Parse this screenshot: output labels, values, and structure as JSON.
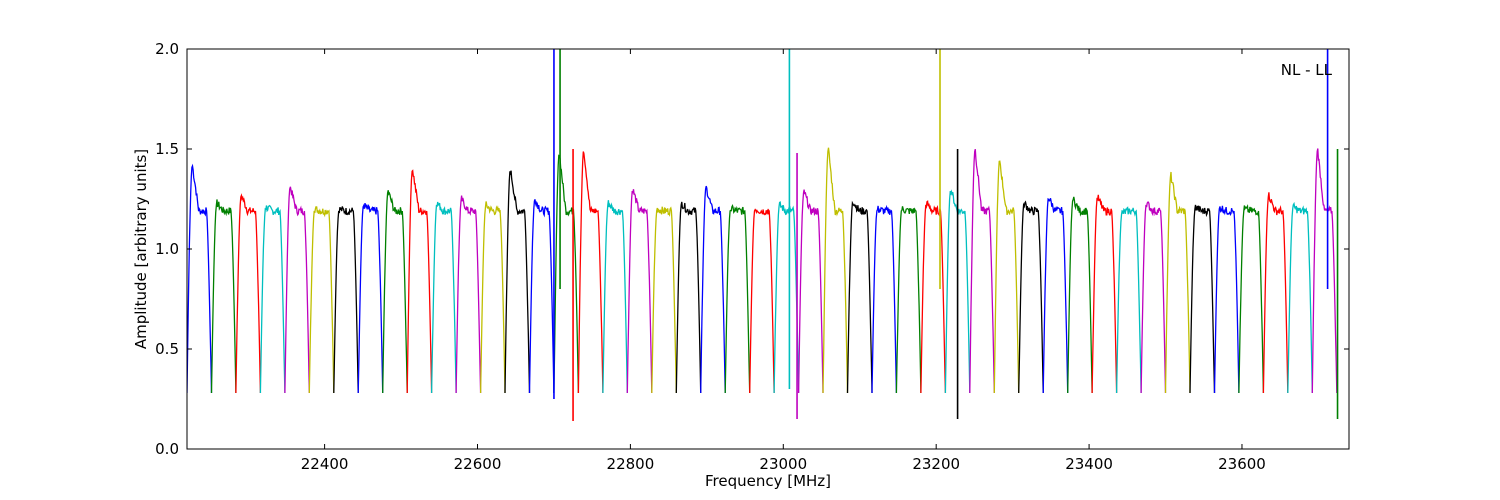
{
  "chart_data": {
    "type": "line",
    "title": "",
    "annotation": "NL - LL",
    "xlabel": "Frequency [MHz]",
    "ylabel": "Amplitude [arbitrary units]",
    "xlim": [
      22220,
      23740
    ],
    "ylim": [
      0.0,
      2.0
    ],
    "xticks": [
      22400,
      22600,
      22800,
      23000,
      23200,
      23400,
      23600
    ],
    "yticks": [
      0.0,
      0.5,
      1.0,
      1.5,
      2.0
    ],
    "ytick_labels": [
      "0.0",
      "0.5",
      "1.0",
      "1.5",
      "2.0"
    ],
    "grid": false,
    "colors": [
      "#0000ff",
      "#008000",
      "#ff0000",
      "#00bfbf",
      "#bf00bf",
      "#bfbf00",
      "#000000"
    ],
    "subband": {
      "start": 22220,
      "width": 32,
      "count": 47,
      "edge_value": 0.28,
      "flat_value": 1.19,
      "peak_values": [
        1.42,
        1.23,
        1.27,
        1.21,
        1.31,
        1.2,
        1.2,
        1.22,
        1.29,
        1.4,
        1.23,
        1.25,
        1.22,
        1.4,
        1.25,
        1.48,
        1.5,
        1.23,
        1.3,
        1.2,
        1.23,
        1.31,
        1.2,
        1.2,
        1.22,
        1.29,
        1.5,
        1.24,
        1.2,
        1.2,
        1.23,
        1.3,
        1.5,
        1.45,
        1.23,
        1.26,
        1.25,
        1.26,
        1.18,
        1.23,
        1.37,
        1.21,
        1.21,
        1.2,
        1.27,
        1.21,
        1.5
      ]
    },
    "spikes": [
      {
        "x": 22700,
        "y_top": 2.0,
        "y_bottom": 0.25
      },
      {
        "x": 22708,
        "y_top": 2.0,
        "y_bottom": 0.8
      },
      {
        "x": 22725,
        "y_top": 1.5,
        "y_bottom": 0.14
      },
      {
        "x": 23008,
        "y_top": 2.0,
        "y_bottom": 0.3
      },
      {
        "x": 23018,
        "y_top": 1.48,
        "y_bottom": 0.15
      },
      {
        "x": 23205,
        "y_top": 2.0,
        "y_bottom": 0.8
      },
      {
        "x": 23228,
        "y_top": 1.5,
        "y_bottom": 0.15
      },
      {
        "x": 23712,
        "y_top": 2.0,
        "y_bottom": 0.8
      },
      {
        "x": 23725,
        "y_top": 1.5,
        "y_bottom": 0.15
      }
    ]
  }
}
